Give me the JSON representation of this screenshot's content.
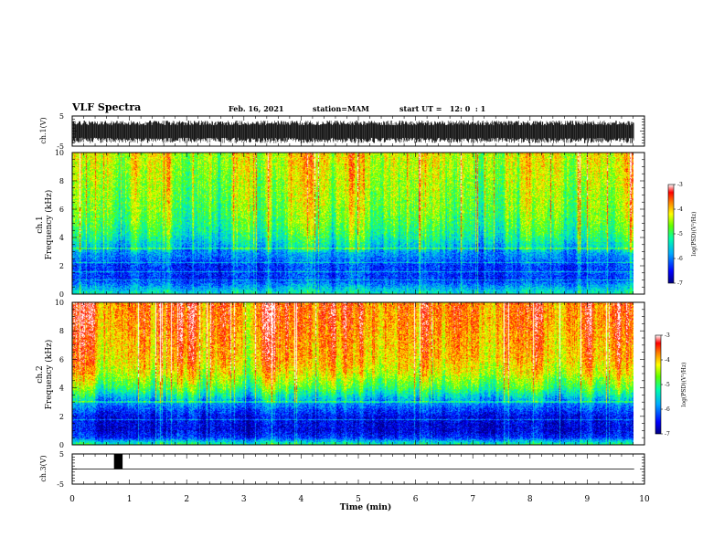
{
  "header": {
    "title": "VLF Spectra",
    "date": "Feb. 16, 2021",
    "station": "station=MAM",
    "start": "start UT =   12: 0  : 1"
  },
  "colors": {
    "spectrum_scale": [
      "#000080",
      "#0000ff",
      "#0080ff",
      "#00ffff",
      "#00ff80",
      "#80ff00",
      "#ffff00",
      "#ff8000",
      "#ff0000",
      "#ffffff"
    ]
  },
  "chart_data": [
    {
      "type": "line",
      "name": "channel-1-waveform",
      "ylabel": "ch.1(V)",
      "ylim": [
        -5,
        5
      ],
      "yticks": [
        5,
        -5
      ],
      "xlim": [
        0,
        10
      ],
      "envelope": {
        "high": 3.5,
        "low": -4.0
      }
    },
    {
      "type": "heatmap",
      "name": "channel-1-spectrogram",
      "ylabel_top": "ch.1",
      "ylabel": "Frequency (kHz)",
      "ylim": [
        0,
        10
      ],
      "yticks": [
        0,
        2,
        4,
        6,
        8,
        10
      ],
      "xlim": [
        0,
        9.83
      ],
      "colorbar": {
        "label": "log(PSD)(V²/Hz)",
        "range": [
          -7,
          -3
        ],
        "ticks": [
          -3,
          -4,
          -5,
          -6,
          -7
        ]
      },
      "profile_kHz": [
        0,
        0.5,
        1,
        2,
        3,
        4,
        5,
        6,
        7,
        8,
        9,
        10
      ],
      "profile_log_psd": [
        -5.3,
        -5.8,
        -6.3,
        -6.3,
        -5.8,
        -5.2,
        -4.9,
        -4.7,
        -4.6,
        -4.5,
        -4.4,
        -4.3
      ]
    },
    {
      "type": "heatmap",
      "name": "channel-2-spectrogram",
      "ylabel_top": "ch.2",
      "ylabel": "Frequency (kHz)",
      "ylim": [
        0,
        10
      ],
      "yticks": [
        0,
        2,
        4,
        6,
        8,
        10
      ],
      "xlim": [
        0,
        9.83
      ],
      "colorbar": {
        "label": "log(PSD)(V²/Hz)",
        "range": [
          -7,
          -3
        ],
        "ticks": [
          -3,
          -4,
          -5,
          -6,
          -7
        ]
      },
      "profile_kHz": [
        0,
        0.5,
        1,
        2,
        3,
        4,
        5,
        6,
        7,
        8,
        9,
        10
      ],
      "profile_log_psd": [
        -5.0,
        -6.3,
        -6.6,
        -6.5,
        -5.8,
        -4.8,
        -4.2,
        -3.9,
        -3.8,
        -3.7,
        -3.6,
        -3.6
      ]
    },
    {
      "type": "line",
      "name": "channel-3-signal",
      "ylabel": "ch.3(V)",
      "ylim": [
        -5,
        5
      ],
      "yticks": [
        5,
        -5
      ],
      "xlim": [
        0,
        10
      ],
      "baseline": 0,
      "pulse": {
        "x_start": 0.73,
        "x_end": 0.88,
        "value": 5
      }
    }
  ],
  "x_axis": {
    "label": "Time (min)",
    "range": [
      0,
      10
    ],
    "ticks": [
      "0",
      "1",
      "2",
      "3",
      "4",
      "5",
      "6",
      "7",
      "8",
      "9",
      "10"
    ]
  }
}
